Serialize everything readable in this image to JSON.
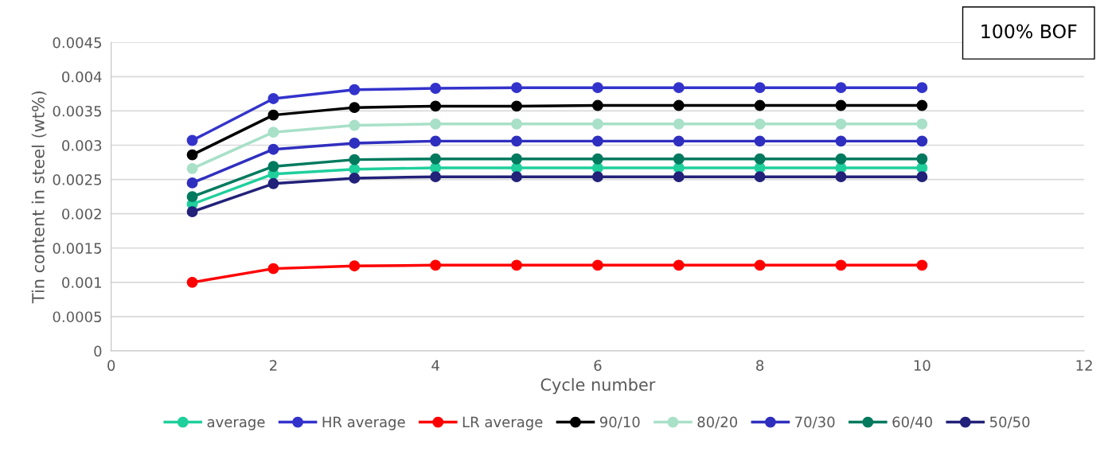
{
  "chart_data": {
    "type": "line",
    "xlabel": "Cycle number",
    "ylabel": "Tin content in steel (wt%)",
    "annotations": [
      "100% BOF"
    ],
    "x": [
      1,
      2,
      3,
      4,
      5,
      6,
      7,
      8,
      9,
      10
    ],
    "series": [
      {
        "name": "average",
        "color": "#1fcf9c",
        "values": [
          0.00214,
          0.00258,
          0.00265,
          0.00267,
          0.00267,
          0.00267,
          0.00267,
          0.00267,
          0.00267,
          0.00267
        ]
      },
      {
        "name": "HR average",
        "color": "#3333cc",
        "values": [
          0.00307,
          0.00368,
          0.00381,
          0.00383,
          0.00384,
          0.00384,
          0.00384,
          0.00384,
          0.00384,
          0.00384
        ]
      },
      {
        "name": "LR average",
        "color": "#ff0000",
        "values": [
          0.001,
          0.0012,
          0.00124,
          0.00125,
          0.00125,
          0.00125,
          0.00125,
          0.00125,
          0.00125,
          0.00125
        ]
      },
      {
        "name": "90/10",
        "color": "#000000",
        "values": [
          0.00286,
          0.00344,
          0.00355,
          0.00357,
          0.00357,
          0.00358,
          0.00358,
          0.00358,
          0.00358,
          0.00358
        ]
      },
      {
        "name": "80/20",
        "color": "#a8e0c8",
        "values": [
          0.00266,
          0.00319,
          0.00329,
          0.00331,
          0.00331,
          0.00331,
          0.00331,
          0.00331,
          0.00331,
          0.00331
        ]
      },
      {
        "name": "70/30",
        "color": "#2f2fbf",
        "values": [
          0.00245,
          0.00294,
          0.00303,
          0.00306,
          0.00306,
          0.00306,
          0.00306,
          0.00306,
          0.00306,
          0.00306
        ]
      },
      {
        "name": "60/40",
        "color": "#007a5e",
        "values": [
          0.00225,
          0.00269,
          0.00279,
          0.0028,
          0.0028,
          0.0028,
          0.0028,
          0.0028,
          0.0028,
          0.0028
        ]
      },
      {
        "name": "50/50",
        "color": "#22227a",
        "values": [
          0.00203,
          0.00244,
          0.00252,
          0.00254,
          0.00254,
          0.00254,
          0.00254,
          0.00254,
          0.00254,
          0.00254
        ]
      }
    ],
    "xlim": [
      0,
      12
    ],
    "xticks": [
      0,
      2,
      4,
      6,
      8,
      10,
      12
    ],
    "ylim": [
      0,
      0.0045
    ],
    "yticks": [
      0,
      0.0005,
      0.001,
      0.0015,
      0.002,
      0.0025,
      0.003,
      0.0035,
      0.004,
      0.0045
    ],
    "grid": "y",
    "legend": "bottom",
    "marker": "circle",
    "line_style": "solid"
  }
}
